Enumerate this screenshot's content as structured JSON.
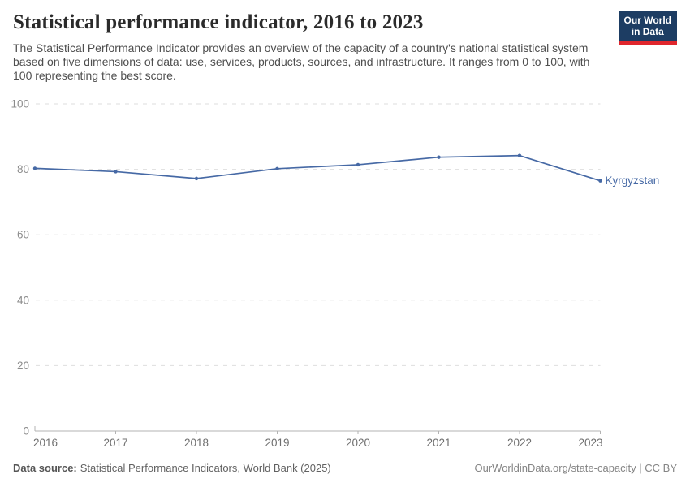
{
  "header": {
    "subtitle": "The Statistical Performance Indicator provides an overview of the capacity of a country's national statistical system based on five dimensions of data: use, services, products, sources, and infrastructure. It ranges from 0 to 100, with 100 representing the best score.",
    "logo": {
      "line1": "Our World",
      "line2": "in Data",
      "bg_color": "#1d3d63",
      "bar_color": "#e0262d"
    }
  },
  "chart_data": {
    "type": "line",
    "title": "Statistical performance indicator, 2016 to 2023",
    "x": [
      2016,
      2017,
      2018,
      2019,
      2020,
      2021,
      2022,
      2023
    ],
    "series": [
      {
        "name": "Kyrgyzstan",
        "color": "#4669a5",
        "values": [
          80.3,
          79.3,
          77.2,
          80.2,
          81.4,
          83.7,
          84.2,
          76.5
        ]
      }
    ],
    "ylim": [
      0,
      100
    ],
    "yticks": [
      0,
      20,
      40,
      60,
      80,
      100
    ],
    "xlabel": "",
    "ylabel": "",
    "grid": "dashed-horizontal",
    "legend_position": "end-of-line-label"
  },
  "footer": {
    "datasource_label": "Data source:",
    "datasource_text": "Statistical Performance Indicators, World Bank (2025)",
    "link_text": "OurWorldinData.org/state-capacity | CC BY"
  }
}
